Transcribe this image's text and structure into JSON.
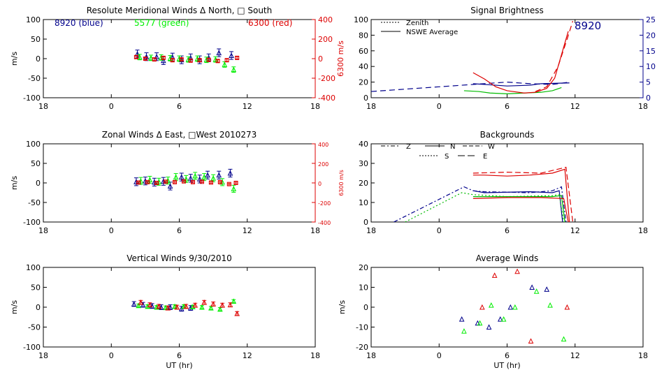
{
  "chart_data": [
    {
      "type": "scatter",
      "title": "Resolute Meridional Winds Δ North, □ South",
      "xlabel": "",
      "ylabel": "m/s",
      "y2label": "6300 m/s",
      "xlim": [
        18,
        42
      ],
      "ylim": [
        -100,
        100
      ],
      "y2lim": [
        -400,
        400
      ],
      "xticks": [
        "18",
        "0",
        "6",
        "12",
        "18"
      ],
      "yticks": [
        "100",
        "50",
        "0",
        "-50",
        "-100"
      ],
      "y2ticks": [
        "400",
        "200",
        "0",
        "-200",
        "-400"
      ],
      "legend": [
        {
          "label": "8920 (blue)",
          "color": "#00008b"
        },
        {
          "label": "5577 (green)",
          "color": "#00ee00"
        },
        {
          "label": "6300 (red)",
          "color": "#dd0000"
        }
      ],
      "series": [
        {
          "color": "#00008b",
          "x": [
            2.3,
            3.1,
            4.0,
            4.6,
            5.4,
            6.2,
            7.0,
            7.8,
            8.6,
            9.5,
            10.6
          ],
          "y": [
            12,
            5,
            5,
            -5,
            4,
            -3,
            2,
            -3,
            2,
            15,
            8
          ],
          "err": 10
        },
        {
          "color": "#00ee00",
          "x": [
            2.5,
            3.5,
            4.4,
            5.2,
            6.0,
            6.8,
            7.6,
            8.4,
            9.2,
            10.0,
            10.8
          ],
          "y": [
            4,
            2,
            3,
            1,
            0,
            -2,
            0,
            -3,
            -2,
            -15,
            -28
          ],
          "err": 7
        },
        {
          "color": "#dd0000",
          "x": [
            2.2,
            3.0,
            3.8,
            4.6,
            5.4,
            6.2,
            7.0,
            7.8,
            8.6,
            9.4,
            10.2,
            11.1
          ],
          "y": [
            4,
            0,
            -2,
            2,
            -4,
            -2,
            -5,
            -4,
            -3,
            -6,
            -4,
            2
          ],
          "err": 3
        }
      ]
    },
    {
      "type": "line",
      "title": "Signal Brightness",
      "xlim": [
        18,
        42
      ],
      "ylim": [
        0,
        100
      ],
      "y2lim": [
        0,
        25
      ],
      "xticks": [
        "18",
        "0",
        "6",
        "12",
        "18"
      ],
      "yticks": [
        "100",
        "80",
        "60",
        "40",
        "20",
        "0"
      ],
      "y2ticks": [
        "25",
        "20",
        "15",
        "10",
        "5",
        "0"
      ],
      "annotation": "8920",
      "legend": [
        {
          "label": "Zenith",
          "dash": "dotted"
        },
        {
          "label": "NSWE Average",
          "dash": "solid"
        }
      ],
      "series": [
        {
          "color": "#00008b",
          "dash": "8,5",
          "x": [
            18,
            20,
            22,
            24,
            26,
            28,
            30,
            32,
            34,
            35,
            35.5
          ],
          "y": [
            8,
            10,
            12,
            14,
            16,
            18,
            20,
            18,
            17,
            19,
            20
          ]
        },
        {
          "color": "#00008b",
          "dash": "",
          "x": [
            27,
            28,
            30,
            32,
            33,
            35.5
          ],
          "y": [
            18,
            17,
            15,
            16,
            18,
            19
          ]
        },
        {
          "color": "#00bb00",
          "dash": "",
          "x": [
            26.2,
            27.5,
            28.5,
            30,
            31.5,
            33,
            34,
            34.8
          ],
          "y": [
            9,
            8,
            6,
            5,
            6,
            7,
            9,
            13
          ]
        },
        {
          "color": "#dd0000",
          "dash": "",
          "x": [
            27,
            28,
            29,
            30,
            31.5,
            32.5,
            33.5,
            34.2,
            34.8,
            35.4
          ],
          "y": [
            32,
            24,
            14,
            9,
            6,
            7,
            12,
            25,
            55,
            85
          ]
        },
        {
          "color": "#dd0000",
          "dash": "8,5",
          "x": [
            32.5,
            33.5,
            34.5,
            35.3,
            35.8
          ],
          "y": [
            8,
            14,
            40,
            75,
            98
          ]
        }
      ]
    },
    {
      "type": "scatter",
      "title": "Zonal Winds Δ East, □West 2010273",
      "ylabel": "m/s",
      "y2label": "6300 m/s",
      "xlim": [
        18,
        42
      ],
      "ylim": [
        -100,
        100
      ],
      "y2lim": [
        -400,
        400
      ],
      "xticks": [
        "18",
        "0",
        "6",
        "12",
        "18"
      ],
      "yticks": [
        "100",
        "50",
        "0",
        "-50",
        "-100"
      ],
      "y2ticks": [
        "400",
        "200",
        "0",
        "-200",
        "-400"
      ],
      "series": [
        {
          "color": "#00008b",
          "x": [
            2.2,
            3.0,
            3.8,
            4.6,
            5.2,
            6.2,
            7.0,
            7.8,
            8.5,
            9.5,
            10.5
          ],
          "y": [
            3,
            5,
            2,
            4,
            -8,
            15,
            12,
            10,
            20,
            20,
            25
          ],
          "err": 10
        },
        {
          "color": "#00ee00",
          "x": [
            2.6,
            3.4,
            4.2,
            5.0,
            5.7,
            6.6,
            7.4,
            8.2,
            9.0,
            9.8,
            10.8
          ],
          "y": [
            5,
            8,
            3,
            6,
            15,
            10,
            18,
            15,
            12,
            2,
            -15
          ],
          "err": 9
        },
        {
          "color": "#dd0000",
          "x": [
            2.4,
            3.2,
            4.0,
            4.8,
            5.6,
            6.4,
            7.2,
            8.0,
            8.8,
            9.6,
            10.4,
            11.0
          ],
          "y": [
            1,
            2,
            0,
            3,
            2,
            4,
            2,
            3,
            1,
            2,
            -3,
            0
          ],
          "err": 2
        }
      ]
    },
    {
      "type": "line",
      "title": "Backgrounds",
      "xlim": [
        18,
        42
      ],
      "ylim": [
        0,
        40
      ],
      "xticks": [
        "18",
        "0",
        "6",
        "12",
        "18"
      ],
      "yticks": [
        "40",
        "30",
        "20",
        "10",
        "0"
      ],
      "legend": [
        {
          "label": "Z",
          "dash": "dashdot"
        },
        {
          "label": "N",
          "dash": "solid"
        },
        {
          "label": "W",
          "dash": "dashed"
        },
        {
          "label": "S",
          "dash": "dotted"
        },
        {
          "label": "E",
          "dash": "longdash"
        }
      ],
      "series": [
        {
          "color": "#00008b",
          "dash": "6,3,2,3",
          "x": [
            20,
            26.2,
            27,
            28,
            32,
            34,
            34.8,
            35.2
          ],
          "y": [
            0,
            18,
            16,
            15.5,
            15,
            16,
            18,
            0
          ]
        },
        {
          "color": "#00008b",
          "dash": "",
          "x": [
            27,
            28,
            32,
            34,
            34.6,
            34.9
          ],
          "y": [
            16,
            15,
            15.5,
            15,
            16,
            0
          ]
        },
        {
          "color": "#00bb00",
          "dash": "2,3",
          "x": [
            21,
            26,
            27,
            30,
            34,
            34.6,
            35
          ],
          "y": [
            0,
            15,
            14,
            13,
            13.5,
            14,
            0
          ]
        },
        {
          "color": "#00bb00",
          "dash": "",
          "x": [
            27,
            30,
            34,
            34.8,
            35.1
          ],
          "y": [
            13,
            13,
            13,
            13.5,
            0
          ]
        },
        {
          "color": "#dd0000",
          "dash": "",
          "x": [
            27,
            28,
            30,
            32,
            34,
            35.1,
            35.5
          ],
          "y": [
            24,
            24,
            23.5,
            24,
            25,
            27,
            0
          ]
        },
        {
          "color": "#dd0000",
          "dash": "8,4",
          "x": [
            27,
            30,
            33,
            35.2,
            35.8
          ],
          "y": [
            25,
            25.5,
            25,
            28,
            0
          ]
        },
        {
          "color": "#dd0000",
          "dash": "",
          "x": [
            27,
            30,
            33,
            35,
            35.4
          ],
          "y": [
            12,
            12.5,
            12.5,
            12,
            0
          ]
        }
      ]
    },
    {
      "type": "scatter",
      "title": "Vertical Winds 9/30/2010",
      "xlabel": "UT (hr)",
      "ylabel": "m/s",
      "xlim": [
        18,
        42
      ],
      "ylim": [
        -100,
        100
      ],
      "xticks": [
        "18",
        "0",
        "6",
        "12",
        "18"
      ],
      "yticks": [
        "100",
        "50",
        "0",
        "-50",
        "-100"
      ],
      "series": [
        {
          "color": "#00008b",
          "x": [
            2.0,
            2.8,
            3.6,
            4.4,
            5.2,
            6.2,
            7.0
          ],
          "y": [
            8,
            6,
            3,
            0,
            0,
            -4,
            -2
          ],
          "err": 6
        },
        {
          "color": "#00ee00",
          "x": [
            2.4,
            3.2,
            4.0,
            4.8,
            5.6,
            6.4,
            7.2,
            8.0,
            8.8,
            9.6,
            10.8
          ],
          "y": [
            4,
            2,
            0,
            -1,
            2,
            2,
            1,
            0,
            -2,
            -5,
            15
          ],
          "err": 4
        },
        {
          "color": "#dd0000",
          "x": [
            2.6,
            3.4,
            4.2,
            5.0,
            5.8,
            6.6,
            7.4,
            8.2,
            9.0,
            9.8,
            10.5,
            11.1
          ],
          "y": [
            12,
            6,
            2,
            -2,
            0,
            2,
            5,
            12,
            8,
            5,
            6,
            -16
          ],
          "err": 5
        }
      ]
    },
    {
      "type": "scatter",
      "title": "Average Winds",
      "xlabel": "UT (hr)",
      "ylabel": "m/s",
      "xlim": [
        18,
        42
      ],
      "ylim": [
        -20,
        20
      ],
      "xticks": [
        "18",
        "0",
        "6",
        "12",
        "18"
      ],
      "yticks": [
        "20",
        "10",
        "0",
        "-10",
        "-20"
      ],
      "series": [
        {
          "color": "#00008b",
          "marker": "triangle",
          "x": [
            2.0,
            3.4,
            4.4,
            5.4,
            6.3,
            8.2,
            9.5
          ],
          "y": [
            -6,
            -8,
            -10,
            -6,
            0,
            10,
            9
          ]
        },
        {
          "color": "#00ee00",
          "marker": "triangle",
          "x": [
            2.2,
            3.6,
            4.6,
            5.7,
            6.7,
            8.6,
            9.8,
            11.0
          ],
          "y": [
            -12,
            -8,
            1,
            -6,
            0,
            8,
            1,
            -16
          ]
        },
        {
          "color": "#dd0000",
          "marker": "triangle",
          "x": [
            3.8,
            4.9,
            6.9,
            8.1,
            11.3
          ],
          "y": [
            0,
            16,
            18,
            -17,
            0
          ]
        }
      ]
    }
  ]
}
